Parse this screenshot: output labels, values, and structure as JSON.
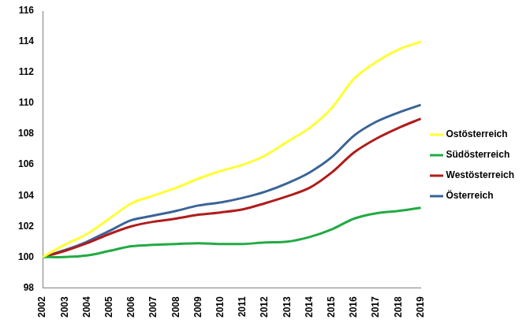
{
  "chart_data": {
    "type": "line",
    "categories": [
      "2002",
      "2003",
      "2004",
      "2005",
      "2006",
      "2007",
      "2008",
      "2009",
      "2010",
      "2011",
      "2012",
      "2013",
      "2014",
      "2015",
      "2016",
      "2017",
      "2018",
      "2019"
    ],
    "series": [
      {
        "name": "Ostösterreich",
        "color": "#ffff33",
        "values": [
          100,
          100.8,
          101.5,
          102.5,
          103.5,
          104.0,
          104.5,
          105.1,
          105.6,
          106.0,
          106.6,
          107.5,
          108.4,
          109.7,
          111.6,
          112.7,
          113.5,
          114.0
        ]
      },
      {
        "name": "Südösterreich",
        "color": "#22aa44",
        "values": [
          100,
          100.0,
          100.1,
          100.4,
          100.7,
          100.8,
          100.85,
          100.9,
          100.85,
          100.85,
          100.95,
          101.0,
          101.3,
          101.8,
          102.5,
          102.85,
          103.0,
          103.2
        ]
      },
      {
        "name": "Westösterreich",
        "color": "#b01c1c",
        "values": [
          100,
          100.4,
          100.9,
          101.5,
          102.0,
          102.3,
          102.5,
          102.75,
          102.9,
          103.1,
          103.5,
          103.95,
          104.5,
          105.5,
          106.8,
          107.7,
          108.4,
          109.0
        ]
      },
      {
        "name": "Österreich",
        "color": "#3a6496",
        "values": [
          100,
          100.45,
          101.0,
          101.7,
          102.4,
          102.7,
          103.0,
          103.35,
          103.55,
          103.85,
          104.25,
          104.8,
          105.5,
          106.5,
          107.9,
          108.8,
          109.4,
          109.9
        ]
      }
    ],
    "ylim": [
      98,
      116
    ],
    "yticks": [
      98,
      100,
      102,
      104,
      106,
      108,
      110,
      112,
      114,
      116
    ],
    "grid": false,
    "legend": "right"
  }
}
